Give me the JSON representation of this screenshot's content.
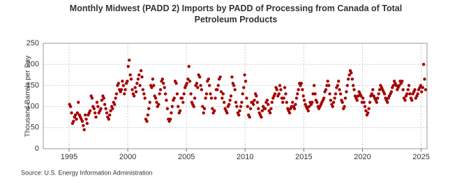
{
  "chart_data": {
    "type": "scatter",
    "title": "Monthly Midwest (PADD 2) Imports by PADD of Processing from Canada of Total Petroleum Products",
    "y_label": "Thousand Barrels per Day",
    "source": "Source: U.S. Energy Information Administration",
    "color": "#a50000",
    "grid": true,
    "xlim": [
      1992.8,
      2025.5
    ],
    "xticks": [
      1995,
      2000,
      2005,
      2010,
      2015,
      2020,
      2025
    ],
    "ylim": [
      0,
      250
    ],
    "yticks": [
      0,
      50,
      100,
      150,
      200,
      250
    ],
    "x": [
      1995.04,
      1995.13,
      1995.21,
      1995.29,
      1995.38,
      1995.46,
      1995.54,
      1995.63,
      1995.71,
      1995.79,
      1995.88,
      1995.96,
      1996.04,
      1996.13,
      1996.21,
      1996.29,
      1996.38,
      1996.46,
      1996.54,
      1996.63,
      1996.71,
      1996.79,
      1996.88,
      1996.96,
      1997.04,
      1997.13,
      1997.21,
      1997.29,
      1997.38,
      1997.46,
      1997.54,
      1997.63,
      1997.71,
      1997.79,
      1997.88,
      1997.96,
      1998.04,
      1998.13,
      1998.21,
      1998.29,
      1998.38,
      1998.46,
      1998.54,
      1998.63,
      1998.71,
      1998.79,
      1998.88,
      1998.96,
      1999.04,
      1999.13,
      1999.21,
      1999.29,
      1999.38,
      1999.46,
      1999.54,
      1999.63,
      1999.71,
      1999.79,
      1999.88,
      1999.96,
      2000.04,
      2000.13,
      2000.21,
      2000.29,
      2000.38,
      2000.46,
      2000.54,
      2000.63,
      2000.71,
      2000.79,
      2000.88,
      2000.96,
      2001.04,
      2001.13,
      2001.21,
      2001.29,
      2001.38,
      2001.46,
      2001.54,
      2001.63,
      2001.71,
      2001.79,
      2001.88,
      2001.96,
      2002.04,
      2002.13,
      2002.21,
      2002.29,
      2002.38,
      2002.46,
      2002.54,
      2002.63,
      2002.71,
      2002.79,
      2002.88,
      2002.96,
      2003.04,
      2003.13,
      2003.21,
      2003.29,
      2003.38,
      2003.46,
      2003.54,
      2003.63,
      2003.71,
      2003.79,
      2003.88,
      2003.96,
      2004.04,
      2004.13,
      2004.21,
      2004.29,
      2004.38,
      2004.46,
      2004.54,
      2004.63,
      2004.71,
      2004.79,
      2004.88,
      2004.96,
      2005.04,
      2005.13,
      2005.21,
      2005.29,
      2005.38,
      2005.46,
      2005.54,
      2005.63,
      2005.71,
      2005.79,
      2005.88,
      2005.96,
      2006.04,
      2006.13,
      2006.21,
      2006.29,
      2006.38,
      2006.46,
      2006.54,
      2006.63,
      2006.71,
      2006.79,
      2006.88,
      2006.96,
      2007.04,
      2007.13,
      2007.21,
      2007.29,
      2007.38,
      2007.46,
      2007.54,
      2007.63,
      2007.71,
      2007.79,
      2007.88,
      2007.96,
      2008.04,
      2008.13,
      2008.21,
      2008.29,
      2008.38,
      2008.46,
      2008.54,
      2008.63,
      2008.71,
      2008.79,
      2008.88,
      2008.96,
      2009.04,
      2009.13,
      2009.21,
      2009.29,
      2009.38,
      2009.46,
      2009.54,
      2009.63,
      2009.71,
      2009.79,
      2009.88,
      2009.96,
      2010.04,
      2010.13,
      2010.21,
      2010.29,
      2010.38,
      2010.46,
      2010.54,
      2010.63,
      2010.71,
      2010.79,
      2010.88,
      2010.96,
      2011.04,
      2011.13,
      2011.21,
      2011.29,
      2011.38,
      2011.46,
      2011.54,
      2011.63,
      2011.71,
      2011.79,
      2011.88,
      2011.96,
      2012.04,
      2012.13,
      2012.21,
      2012.29,
      2012.38,
      2012.46,
      2012.54,
      2012.63,
      2012.71,
      2012.79,
      2012.88,
      2012.96,
      2013.04,
      2013.13,
      2013.21,
      2013.29,
      2013.38,
      2013.46,
      2013.54,
      2013.63,
      2013.71,
      2013.79,
      2013.88,
      2013.96,
      2014.04,
      2014.13,
      2014.21,
      2014.29,
      2014.38,
      2014.46,
      2014.54,
      2014.63,
      2014.71,
      2014.79,
      2014.88,
      2014.96,
      2015.04,
      2015.13,
      2015.21,
      2015.29,
      2015.38,
      2015.46,
      2015.54,
      2015.63,
      2015.71,
      2015.79,
      2015.88,
      2015.96,
      2016.04,
      2016.13,
      2016.21,
      2016.29,
      2016.38,
      2016.46,
      2016.54,
      2016.63,
      2016.71,
      2016.79,
      2016.88,
      2016.96,
      2017.04,
      2017.13,
      2017.21,
      2017.29,
      2017.38,
      2017.46,
      2017.54,
      2017.63,
      2017.71,
      2017.79,
      2017.88,
      2017.96,
      2018.04,
      2018.13,
      2018.21,
      2018.29,
      2018.38,
      2018.46,
      2018.54,
      2018.63,
      2018.71,
      2018.79,
      2018.88,
      2018.96,
      2019.04,
      2019.13,
      2019.21,
      2019.29,
      2019.38,
      2019.46,
      2019.54,
      2019.63,
      2019.71,
      2019.79,
      2019.88,
      2019.96,
      2020.04,
      2020.13,
      2020.21,
      2020.29,
      2020.38,
      2020.46,
      2020.54,
      2020.63,
      2020.71,
      2020.79,
      2020.88,
      2020.96,
      2021.04,
      2021.13,
      2021.21,
      2021.29,
      2021.38,
      2021.46,
      2021.54,
      2021.63,
      2021.71,
      2021.79,
      2021.88,
      2021.96,
      2022.04,
      2022.13,
      2022.21,
      2022.29,
      2022.38,
      2022.46,
      2022.54,
      2022.63,
      2022.71,
      2022.79,
      2022.88,
      2022.96,
      2023.04,
      2023.13,
      2023.21,
      2023.29,
      2023.38,
      2023.46,
      2023.54,
      2023.63,
      2023.71,
      2023.79,
      2023.88,
      2023.96,
      2024.04,
      2024.13,
      2024.21,
      2024.29,
      2024.38,
      2024.46,
      2024.54,
      2024.63,
      2024.71,
      2024.79,
      2024.88,
      2024.96,
      2025.04,
      2025.13,
      2025.21,
      2025.29,
      2025.38
    ],
    "values": [
      105,
      100,
      85,
      60,
      65,
      75,
      80,
      70,
      85,
      110,
      80,
      75,
      70,
      65,
      55,
      45,
      80,
      70,
      60,
      80,
      85,
      90,
      125,
      120,
      100,
      95,
      85,
      75,
      110,
      100,
      85,
      90,
      95,
      115,
      125,
      120,
      105,
      95,
      85,
      75,
      70,
      80,
      90,
      100,
      95,
      110,
      105,
      120,
      130,
      150,
      155,
      140,
      135,
      140,
      160,
      150,
      130,
      140,
      155,
      160,
      195,
      210,
      175,
      165,
      140,
      130,
      125,
      145,
      135,
      155,
      165,
      175,
      150,
      185,
      170,
      140,
      130,
      120,
      70,
      65,
      80,
      95,
      110,
      150,
      145,
      165,
      150,
      125,
      120,
      110,
      100,
      105,
      130,
      140,
      160,
      165,
      155,
      145,
      130,
      115,
      95,
      70,
      65,
      70,
      85,
      100,
      115,
      120,
      160,
      155,
      130,
      100,
      85,
      90,
      120,
      120,
      110,
      130,
      145,
      150,
      155,
      165,
      195,
      160,
      130,
      110,
      105,
      100,
      120,
      150,
      155,
      145,
      175,
      170,
      150,
      140,
      100,
      85,
      95,
      120,
      130,
      160,
      165,
      150,
      130,
      120,
      95,
      85,
      90,
      120,
      140,
      140,
      150,
      165,
      170,
      135,
      120,
      130,
      110,
      95,
      90,
      85,
      100,
      105,
      115,
      125,
      170,
      155,
      150,
      140,
      110,
      100,
      85,
      80,
      90,
      100,
      110,
      130,
      145,
      175,
      160,
      120,
      100,
      80,
      75,
      95,
      110,
      110,
      105,
      115,
      130,
      125,
      110,
      95,
      85,
      80,
      75,
      90,
      100,
      95,
      95,
      110,
      115,
      105,
      90,
      85,
      95,
      110,
      120,
      125,
      130,
      145,
      140,
      125,
      130,
      150,
      140,
      120,
      110,
      120,
      145,
      130,
      110,
      95,
      90,
      85,
      95,
      100,
      110,
      100,
      95,
      105,
      120,
      130,
      140,
      155,
      150,
      155,
      140,
      125,
      115,
      105,
      100,
      95,
      90,
      100,
      110,
      105,
      110,
      130,
      150,
      130,
      115,
      110,
      100,
      95,
      100,
      105,
      110,
      115,
      120,
      135,
      140,
      150,
      160,
      150,
      130,
      115,
      105,
      100,
      110,
      120,
      130,
      145,
      150,
      160,
      140,
      130,
      115,
      110,
      95,
      100,
      120,
      135,
      150,
      165,
      175,
      185,
      180,
      165,
      150,
      140,
      125,
      120,
      115,
      125,
      135,
      130,
      125,
      110,
      120,
      110,
      100,
      90,
      80,
      85,
      95,
      110,
      125,
      130,
      140,
      125,
      120,
      115,
      110,
      120,
      130,
      140,
      150,
      145,
      140,
      135,
      130,
      120,
      115,
      110,
      120,
      125,
      130,
      135,
      145,
      150,
      160,
      155,
      150,
      140,
      145,
      150,
      160,
      155,
      160,
      140,
      120,
      115,
      125,
      130,
      140,
      150,
      130,
      120,
      115,
      130,
      135,
      140,
      120,
      125,
      130,
      140,
      145,
      150,
      135,
      145,
      200,
      165,
      140
    ]
  }
}
